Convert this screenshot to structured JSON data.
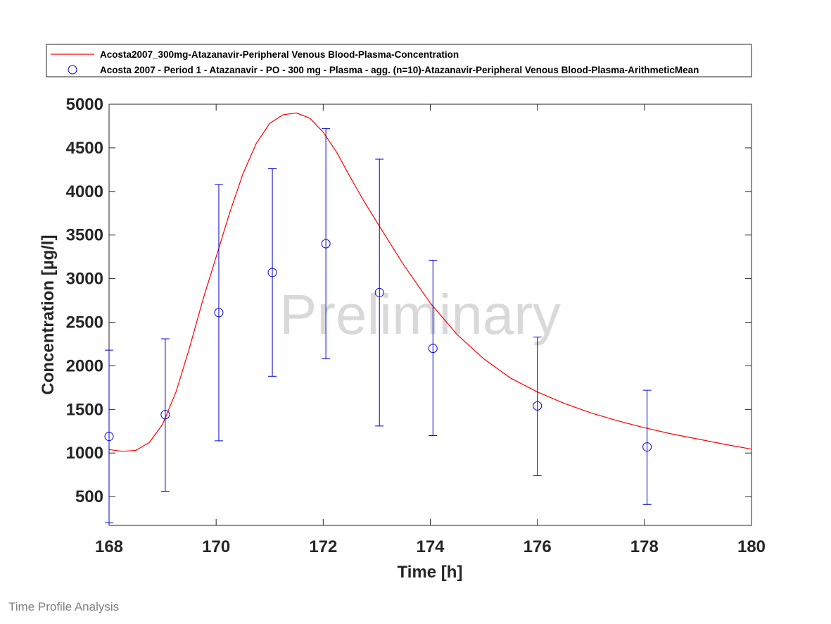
{
  "footer_label": "Time Profile Analysis",
  "chart_data": {
    "type": "scatter",
    "title": "",
    "xlabel": "Time [h]",
    "ylabel": "Concentration [µg/l]",
    "xlim": [
      168,
      180
    ],
    "ylim": [
      170,
      5000
    ],
    "xticks": [
      168,
      170,
      172,
      174,
      176,
      178,
      180
    ],
    "yticks": [
      500,
      1000,
      1500,
      2000,
      2500,
      3000,
      3500,
      4000,
      4500,
      5000
    ],
    "grid": false,
    "legend_position": "top-outside",
    "watermark": "Preliminary",
    "series": [
      {
        "name": "Acosta2007_300mg-Atazanavir-Peripheral Venous Blood-Plasma-Concentration",
        "kind": "line",
        "color": "#ff0000",
        "x": [
          168.0,
          168.25,
          168.5,
          168.75,
          169.0,
          169.25,
          169.5,
          169.75,
          170.0,
          170.25,
          170.5,
          170.75,
          171.0,
          171.25,
          171.5,
          171.75,
          172.0,
          172.25,
          172.5,
          172.75,
          173.0,
          173.5,
          174.0,
          174.5,
          175.0,
          175.5,
          176.0,
          176.5,
          177.0,
          177.5,
          178.0,
          178.5,
          179.0,
          179.5,
          180.0
        ],
        "y": [
          1040,
          1020,
          1030,
          1120,
          1330,
          1700,
          2200,
          2750,
          3250,
          3750,
          4200,
          4550,
          4780,
          4880,
          4900,
          4840,
          4680,
          4450,
          4170,
          3900,
          3650,
          3160,
          2720,
          2360,
          2080,
          1860,
          1700,
          1570,
          1460,
          1370,
          1290,
          1220,
          1160,
          1100,
          1045
        ]
      },
      {
        "name": "Acosta 2007 - Period 1 - Atazanavir - PO - 300 mg - Plasma - agg. (n=10)-Atazanavir-Peripheral Venous Blood-Plasma-ArithmeticMean",
        "kind": "errorbar",
        "color": "#0000cd",
        "x": [
          168.0,
          169.05,
          170.05,
          171.05,
          172.05,
          173.05,
          174.05,
          176.0,
          178.05
        ],
        "y": [
          1190,
          1440,
          2610,
          3070,
          3400,
          2840,
          2200,
          1540,
          1070
        ],
        "err_low": [
          200,
          560,
          1140,
          1880,
          2080,
          1310,
          1200,
          740,
          410
        ],
        "err_high": [
          2180,
          2310,
          4080,
          4260,
          4720,
          4370,
          3210,
          2330,
          1720
        ]
      }
    ]
  }
}
